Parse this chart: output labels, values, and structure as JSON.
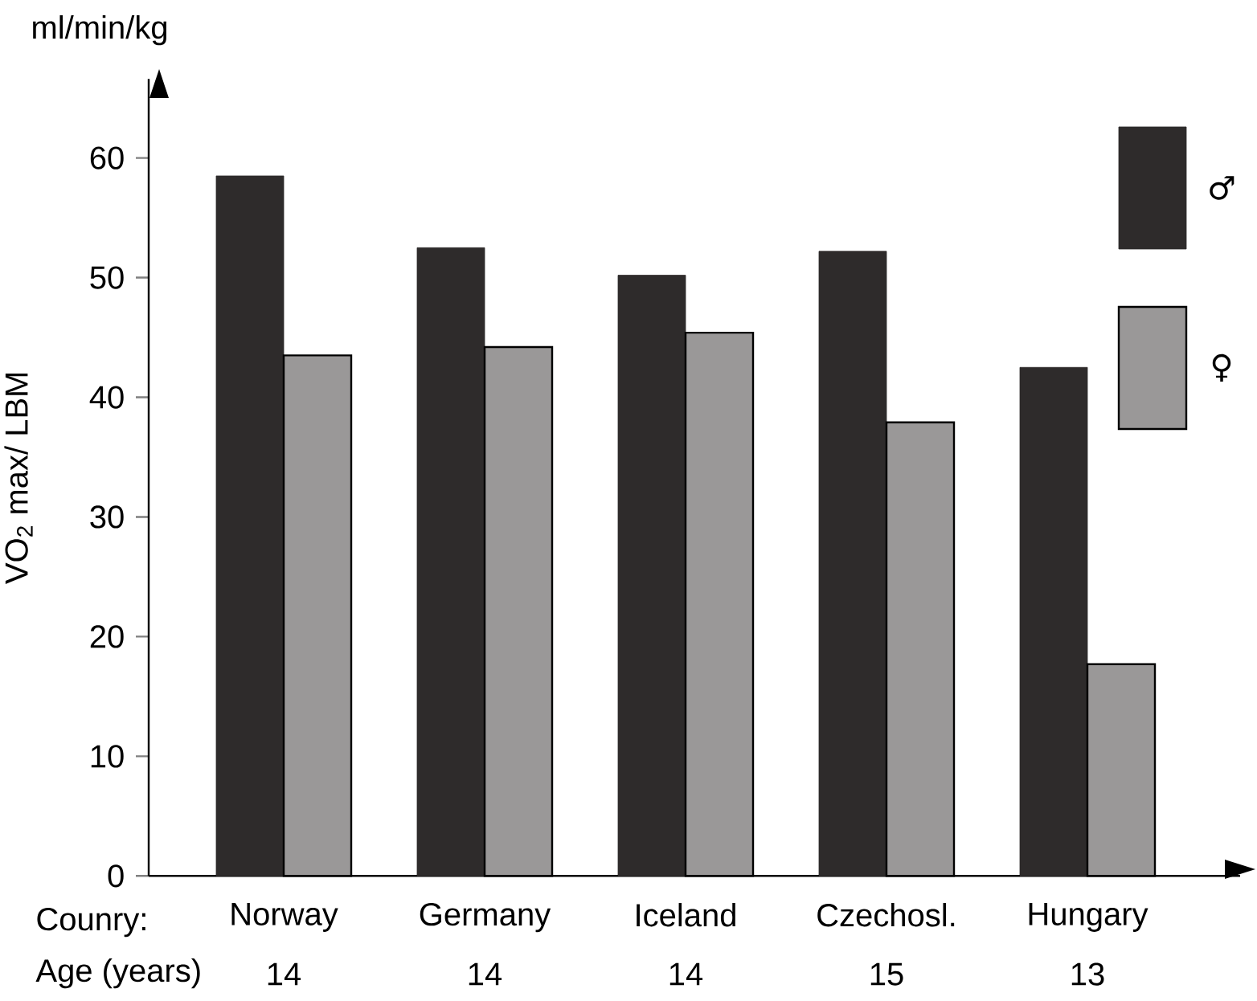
{
  "chart_data": {
    "type": "bar",
    "ylabel": "VO$_{2}$ max/ LBM",
    "categories": [
      "Norway",
      "Germany",
      "Iceland",
      "Czechosl.",
      "Hungary"
    ],
    "series": [
      {
        "name": "♂",
        "color": "#2e2b2b",
        "values": [
          58.5,
          52.5,
          50.2,
          52.2,
          42.5
        ]
      },
      {
        "name": "♀",
        "color": "#9a9898",
        "values": [
          43.5,
          44.2,
          45.4,
          37.9,
          17.7
        ]
      }
    ],
    "ylim": [
      0,
      66.6
    ],
    "yticks": [
      0,
      10,
      20,
      30,
      40,
      50,
      60
    ],
    "grid": false,
    "legend": "right",
    "annotations": [
      "ml/min/kg",
      "Counry:",
      "Age (years)",
      "14",
      "14",
      "14",
      "15",
      "13"
    ]
  }
}
